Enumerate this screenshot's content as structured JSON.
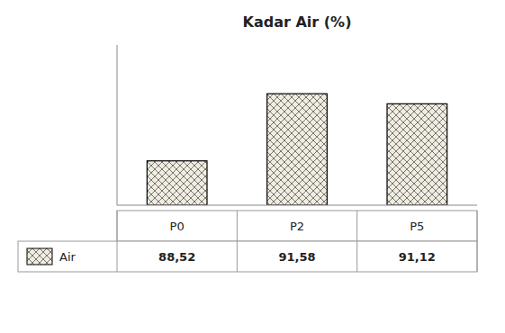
{
  "chart_data": {
    "type": "bar",
    "title": "Kadar Air (%)",
    "categories": [
      "P0",
      "P2",
      "P5"
    ],
    "series": [
      {
        "name": "Air",
        "color": "#f0ede0",
        "values": [
          88.52,
          91.58,
          91.12
        ],
        "value_labels": [
          "88,52",
          "91,58",
          "91,12"
        ]
      }
    ],
    "ylim": [
      86.5,
      93.8
    ],
    "yticks": [],
    "tick_labels": false,
    "grid": false,
    "data_labels": true,
    "legend": "bottom"
  }
}
